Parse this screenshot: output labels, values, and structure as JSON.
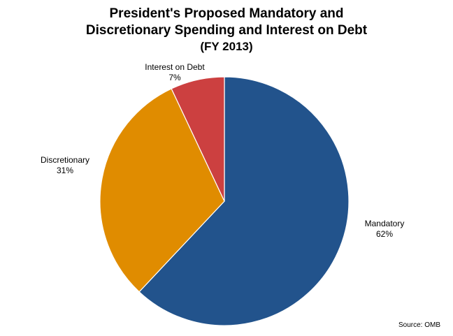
{
  "chart_data": {
    "type": "pie",
    "title_lines": [
      "President's Proposed Mandatory and",
      "Discretionary Spending and Interest on Debt"
    ],
    "subtitle": "(FY 2013)",
    "slices": [
      {
        "label": "Mandatory",
        "value": 62,
        "value_label": "62%",
        "color": "#22538c"
      },
      {
        "label": "Discretionary",
        "value": 31,
        "value_label": "31%",
        "color": "#e08c00"
      },
      {
        "label": "Interest on Debt",
        "value": 7,
        "value_label": "7%",
        "color": "#cc4040"
      }
    ],
    "start": "12 o'clock",
    "direction": "clockwise",
    "legend": "none",
    "source": "Source: OMB"
  }
}
